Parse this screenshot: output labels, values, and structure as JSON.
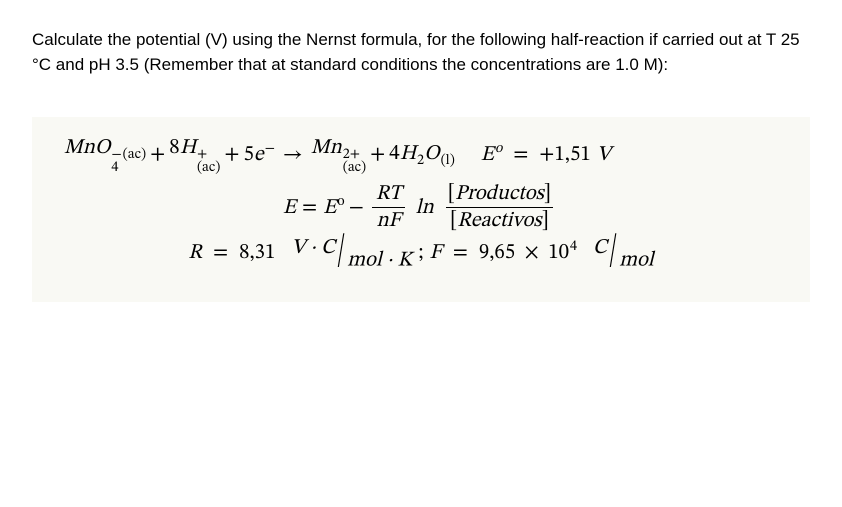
{
  "prompt": "Calculate the potential (V) using the Nernst formula, for the following half-reaction if carried out at T 25 °C and pH 3.5 (Remember that at standard conditions the concentrations are 1.0 M):",
  "colors": {
    "page_bg": "#ffffff",
    "text": "#000000",
    "panel_bg": "#f9f9f4"
  },
  "typography": {
    "body_font": "Arial",
    "body_size_pt": 13,
    "math_font": "Cambria Math / STIX",
    "math_size_pt": 16
  },
  "line1": {
    "lhs_1": "MnO",
    "lhs_1_sub1": "4",
    "lhs_1_sup": "−",
    "lhs_1_sub2": "(ac)",
    "lhs_2_coef": "8",
    "lhs_2": "H",
    "lhs_2_sup": "+",
    "lhs_2_sub": "(ac)",
    "lhs_3_coef": "5",
    "lhs_3": "e",
    "lhs_3_sup": "−",
    "rhs_1": "Mn",
    "rhs_1_sup": "2+",
    "rhs_1_sub": "(ac)",
    "rhs_2_coef": "4",
    "rhs_2": "H",
    "rhs_2_sub1": "2",
    "rhs_2b": "O",
    "rhs_2_sub2": "(l)",
    "E0_sym": "E",
    "E0_sup": "o",
    "E0_val": "+1,51",
    "E0_unit": "V"
  },
  "line2": {
    "E": "E",
    "E0": "E",
    "E0_sup": "o",
    "frac_num": "RT",
    "frac_den": "nF",
    "ln": "ln",
    "ratio_num_l": "[",
    "ratio_num": "Productos",
    "ratio_num_r": "]",
    "ratio_den_l": "[",
    "ratio_den": "Reactivos",
    "ratio_den_r": "]"
  },
  "line3": {
    "R_sym": "R",
    "R_val": "8,31",
    "R_unit_num": "V · C",
    "R_unit_den": "mol · K",
    "F_sym": "F",
    "F_val": "9,65",
    "F_exp": "4",
    "ten": "10",
    "F_unit_num": "C",
    "F_unit_den": "mol"
  }
}
